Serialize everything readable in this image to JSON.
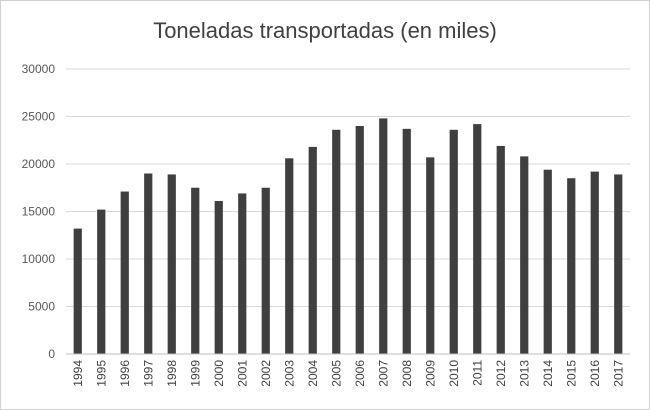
{
  "chart_data": {
    "type": "bar",
    "title": "Toneladas transportadas (en miles)",
    "xlabel": "",
    "ylabel": "",
    "ylim": [
      0,
      30000
    ],
    "yticks": [
      0,
      5000,
      10000,
      15000,
      20000,
      25000,
      30000
    ],
    "grid": true,
    "legend": "none",
    "bar_color": "#3f3f3f",
    "grid_color": "#d9d9d9",
    "categories": [
      "1994",
      "1995",
      "1996",
      "1997",
      "1998",
      "1999",
      "2000",
      "2001",
      "2002",
      "2003",
      "2004",
      "2005",
      "2006",
      "2007",
      "2008",
      "2009",
      "2010",
      "2011",
      "2012",
      "2013",
      "2014",
      "2015",
      "2016",
      "2017"
    ],
    "values": [
      13200,
      15200,
      17100,
      19000,
      18900,
      17500,
      16100,
      16900,
      17500,
      20600,
      21800,
      23600,
      24000,
      24800,
      23700,
      20700,
      23600,
      24200,
      21900,
      20800,
      19400,
      18500,
      19200,
      18900
    ]
  }
}
